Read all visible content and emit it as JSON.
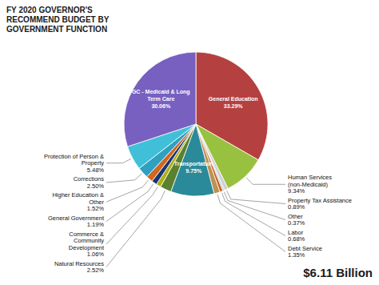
{
  "chart_data": {
    "type": "pie",
    "title": "FY 2020 GOVERNOR'S\nRECOMMEND BUDGET BY\nGOVERNMENT FUNCTION",
    "subtitle": "$6.11 Billion",
    "categories": [
      "General Education",
      "Human Services\n(non-Medicaid)",
      "Property Tax Assistance",
      "Other",
      "Labor",
      "Debt Service",
      "Transportation",
      "Natural Resources",
      "Commerce &\nCommunity\nDevelopment",
      "General Government",
      "Higher Education &\nOther",
      "Corrections",
      "Protection of Person &\nProperty",
      "GC - Medicaid & Long\nTerm Care"
    ],
    "values": [
      33.29,
      9.34,
      0.89,
      0.37,
      0.68,
      1.35,
      9.75,
      2.52,
      1.06,
      1.19,
      1.52,
      2.5,
      5.48,
      30.06
    ],
    "value_labels": [
      "33.29%",
      "9.34%",
      "0.89%",
      "0.37%",
      "0.68%",
      "1.35%",
      "9.75%",
      "2.52%",
      "1.06%",
      "1.19%",
      "1.52%",
      "2.50%",
      "5.48%",
      "30.06%"
    ],
    "colors": [
      "#b54040",
      "#99c140",
      "#d0d0d0",
      "#b0cce0",
      "#c06820",
      "#c09050",
      "#2a8a9a",
      "#5a8030",
      "#b0b010",
      "#1a3575",
      "#d06820",
      "#30a0c0",
      "#40c0d8",
      "#7860c0"
    ],
    "data_labels": true
  }
}
